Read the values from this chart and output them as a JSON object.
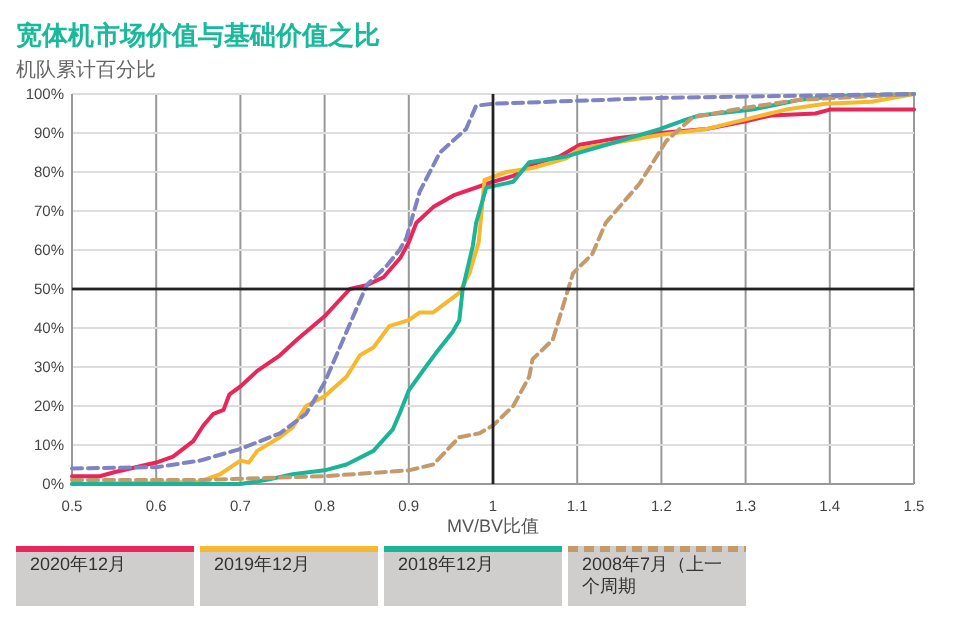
{
  "chart_data": {
    "type": "line",
    "title": "宽体机市场价值与基础价值之比",
    "subtitle": "机队累计百分比",
    "xlabel": "MV/BV比值",
    "xlim": [
      0.5,
      1.5
    ],
    "xticks": [
      0.5,
      0.6,
      0.7,
      0.8,
      0.9,
      1,
      1.1,
      1.2,
      1.3,
      1.4,
      1.5
    ],
    "ylim": [
      0,
      100
    ],
    "yticks": [
      {
        "value": 0,
        "label": "0%"
      },
      {
        "value": 10,
        "label": "10%"
      },
      {
        "value": 20,
        "label": "20%"
      },
      {
        "value": 30,
        "label": "30%"
      },
      {
        "value": 40,
        "label": "40%"
      },
      {
        "value": 50,
        "label": "50%"
      },
      {
        "value": 60,
        "label": "60%"
      },
      {
        "value": 70,
        "label": "70%"
      },
      {
        "value": 80,
        "label": "80%"
      },
      {
        "value": 90,
        "label": "90%"
      },
      {
        "value": 100,
        "label": "100%"
      }
    ],
    "grid": true,
    "legend": "bottom",
    "marker": "none",
    "ref_lines": [
      {
        "axis": "x",
        "value": 1,
        "color": "#222222"
      },
      {
        "axis": "y",
        "value": 50,
        "color": "#222222"
      }
    ],
    "series": [
      {
        "name": "2020年12月",
        "color": "#e8265a",
        "line_style": "solid",
        "x": [
          0.5,
          0.533,
          0.55,
          0.6,
          0.62,
          0.644,
          0.656,
          0.668,
          0.68,
          0.687,
          0.7,
          0.72,
          0.747,
          0.767,
          0.8,
          0.83,
          0.85,
          0.87,
          0.89,
          0.9,
          0.909,
          0.929,
          0.953,
          1.0,
          1.024,
          1.047,
          1.079,
          1.103,
          1.143,
          1.198,
          1.253,
          1.3,
          1.33,
          1.383,
          1.4,
          1.5
        ],
        "values": [
          2,
          2,
          3,
          5.5,
          7,
          11,
          15,
          18,
          19,
          23,
          25,
          29,
          33,
          37,
          43,
          50,
          51,
          53,
          58,
          62,
          67,
          71,
          74,
          77.5,
          79,
          82,
          84,
          87,
          88.5,
          90,
          91,
          93,
          94.5,
          95,
          96,
          96
        ]
      },
      {
        "name": "2019年12月",
        "color": "#f5b82e",
        "line_style": "solid",
        "x": [
          0.5,
          0.65,
          0.676,
          0.7,
          0.71,
          0.72,
          0.747,
          0.762,
          0.778,
          0.8,
          0.826,
          0.842,
          0.858,
          0.877,
          0.9,
          0.913,
          0.929,
          0.96,
          0.972,
          0.983,
          0.99,
          1.016,
          1.047,
          1.087,
          1.103,
          1.158,
          1.198,
          1.253,
          1.3,
          1.348,
          1.395,
          1.45,
          1.5
        ],
        "values": [
          0,
          0.5,
          2.5,
          6,
          5.5,
          8.5,
          12,
          14.5,
          20,
          22.5,
          27.5,
          33,
          35,
          40.5,
          42,
          44,
          44,
          49,
          54,
          62,
          78,
          80,
          81,
          83.5,
          86,
          88,
          89.5,
          91,
          93.5,
          96,
          97.5,
          98,
          100
        ]
      },
      {
        "name": "2018年12月",
        "color": "#1bb497",
        "line_style": "solid",
        "x": [
          0.5,
          0.6,
          0.7,
          0.73,
          0.762,
          0.8,
          0.826,
          0.858,
          0.881,
          0.889,
          0.9,
          0.92,
          0.932,
          0.952,
          0.96,
          0.964,
          0.976,
          0.98,
          0.992,
          1.024,
          1.043,
          1.087,
          1.143,
          1.198,
          1.23,
          1.245,
          1.308,
          1.364,
          1.411,
          1.5
        ],
        "values": [
          0,
          0,
          0,
          1,
          2.5,
          3.5,
          5,
          8.5,
          14,
          18,
          24,
          30,
          33.5,
          39,
          42,
          50,
          61,
          67,
          76,
          77.5,
          82.5,
          84,
          87.5,
          91,
          93.5,
          94.5,
          96,
          98.5,
          99.5,
          100
        ]
      },
      {
        "name": "2008年7月（上一个周期",
        "color": "#c49a6c",
        "line_style": "dashed",
        "x": [
          0.5,
          0.65,
          0.8,
          0.9,
          0.929,
          0.96,
          0.984,
          1.0,
          1.024,
          1.043,
          1.047,
          1.071,
          1.095,
          1.118,
          1.134,
          1.174,
          1.206,
          1.237,
          1.3,
          1.364,
          1.5
        ],
        "values": [
          1,
          1,
          2,
          3.5,
          5,
          12,
          13,
          15,
          20,
          27.5,
          32,
          37,
          54,
          59,
          67,
          77,
          88,
          94,
          96.5,
          98.5,
          100
        ]
      },
      {
        "color": "#7f83c2",
        "line_style": "dashed",
        "x": [
          0.5,
          0.6,
          0.652,
          0.7,
          0.747,
          0.778,
          0.8,
          0.826,
          0.85,
          0.874,
          0.889,
          0.897,
          0.913,
          0.937,
          0.968,
          0.98,
          1.0,
          1.198,
          1.5
        ],
        "values": [
          4,
          4.3,
          6,
          9,
          13,
          18,
          26,
          39,
          51,
          56,
          60,
          63,
          75,
          85,
          91,
          97,
          97.5,
          99,
          100
        ]
      }
    ]
  }
}
